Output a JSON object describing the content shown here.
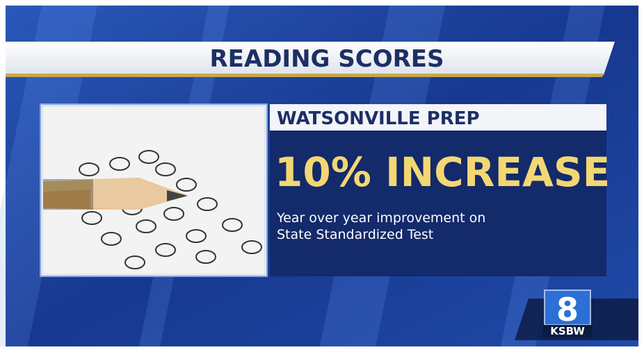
{
  "header": {
    "title": "READING SCORES"
  },
  "card": {
    "school": "WATSONVILLE PREP",
    "stat": "10% INCREASE",
    "description": [
      "Year over year improvement on",
      "State Standardized Test"
    ]
  },
  "logo": {
    "number": "8",
    "station": "KSBW"
  }
}
